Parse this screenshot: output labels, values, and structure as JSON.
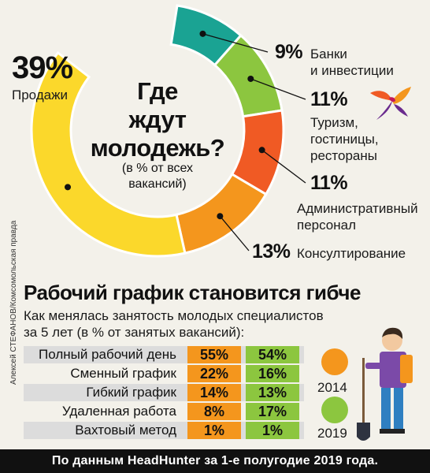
{
  "chart_data": [
    {
      "type": "pie",
      "title": "Где ждут молодежь?",
      "subtitle": "(в % от всех вакансий)",
      "unit": "%",
      "slices": [
        {
          "label": "Банки и инвестиции",
          "value": 9,
          "value_label": "9%",
          "color": "#1aa393"
        },
        {
          "label": "Туризм, гостиницы, рестораны",
          "value": 11,
          "value_label": "11%",
          "color": "#8cc63f"
        },
        {
          "label": "Административный персонал",
          "value": 11,
          "value_label": "11%",
          "color": "#f05a24"
        },
        {
          "label": "Консултирование",
          "value": 13,
          "value_label": "13%",
          "color": "#f4961d"
        },
        {
          "label": "Продажи",
          "value": 39,
          "value_label": "39%",
          "color": "#fbd82b"
        }
      ]
    },
    {
      "type": "table",
      "title": "Рабочий график становится гибче",
      "subtitle": "Как менялась занятость молодых специалистов\nза 5 лет (в % от занятых вакансий):",
      "series": [
        {
          "name": "2014",
          "color": "#f4961d"
        },
        {
          "name": "2019",
          "color": "#8cc63f"
        }
      ],
      "rows": [
        {
          "label": "Полный рабочий день",
          "v2014": "55%",
          "v2019": "54%"
        },
        {
          "label": "Сменный график",
          "v2014": "22%",
          "v2019": "16%"
        },
        {
          "label": "Гибкий график",
          "v2014": "14%",
          "v2019": "13%"
        },
        {
          "label": "Удаленная работа",
          "v2014": "8%",
          "v2019": "17%"
        },
        {
          "label": "Вахтовый метод",
          "v2014": "1%",
          "v2019": "1%"
        }
      ]
    }
  ],
  "labels": {
    "banks_pct": "9%",
    "banks": "Банки\nи инвестиции",
    "tourism_pct": "11%",
    "tourism": "Туризм,\nгостиницы,\nрестораны",
    "admin_pct": "11%",
    "admin": "Административный\nперсонал",
    "consult_pct": "13%",
    "consult": "Консултирование",
    "sales_pct": "39%",
    "sales": "Продажи",
    "center_title": "Где\nждут\nмолодежь?",
    "center_sub": "(в % от всех\nвакансий)"
  },
  "credit": "Алексей СТЕФАНОВ/Комсомольская правда",
  "footer": "По данным HeadHunter за 1-е полугодие 2019 года."
}
